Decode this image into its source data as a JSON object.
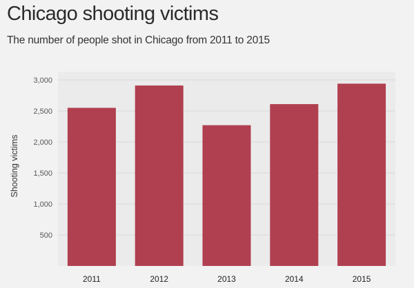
{
  "header": {
    "title": "Chicago shooting victims",
    "subtitle": "The number of people shot in Chicago from 2011 to 2015"
  },
  "chart_data": {
    "type": "bar",
    "categories": [
      "2011",
      "2012",
      "2013",
      "2014",
      "2015"
    ],
    "values": [
      2550,
      2910,
      2270,
      2610,
      2940
    ],
    "title": "Chicago shooting victims",
    "subtitle": "The number of people shot in Chicago from 2011 to 2015",
    "xlabel": "",
    "ylabel": "Shooting victims",
    "ylim": [
      0,
      3000
    ],
    "yticks": [
      500,
      1000,
      1500,
      2000,
      2500,
      3000
    ],
    "ytick_labels": [
      "500",
      "1,000",
      "1,500",
      "2,000",
      "2,500",
      "3,000"
    ],
    "grid": true,
    "legend": "none",
    "bar_color": "#b04050",
    "grid_color": "#d8d8d8",
    "plot_background": "#ebebeb"
  }
}
